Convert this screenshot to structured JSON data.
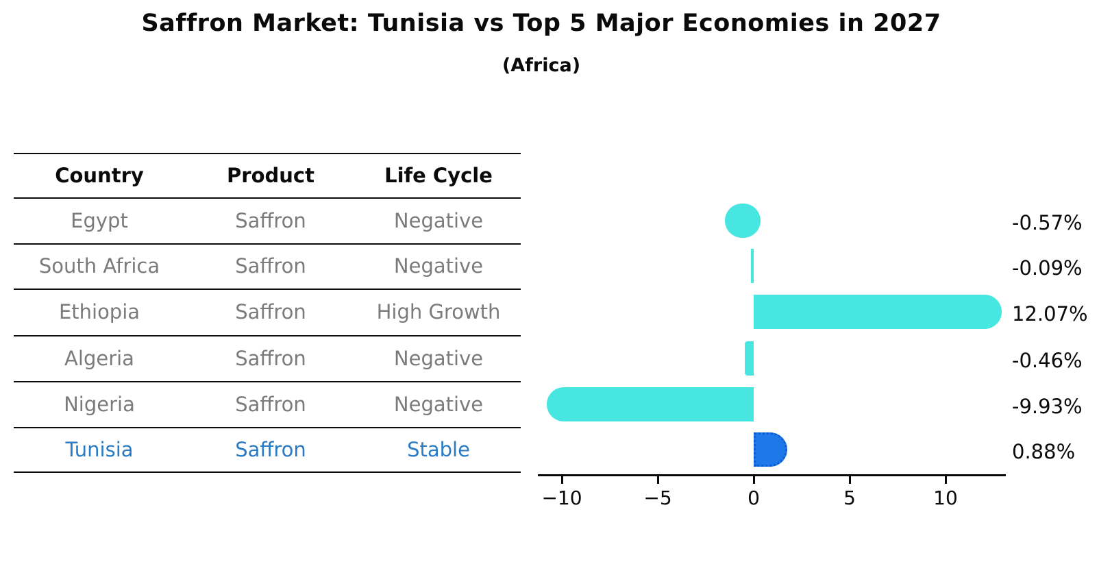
{
  "title": "Saffron Market: Tunisia vs Top 5 Major Economies in 2027",
  "subtitle": "(Africa)",
  "table": {
    "headers": [
      "Country",
      "Product",
      "Life Cycle"
    ],
    "rows": [
      {
        "country": "Egypt",
        "product": "Saffron",
        "life_cycle": "Negative",
        "highlight": false
      },
      {
        "country": "South Africa",
        "product": "Saffron",
        "life_cycle": "Negative",
        "highlight": false
      },
      {
        "country": "Ethiopia",
        "product": "Saffron",
        "life_cycle": "High Growth",
        "highlight": false
      },
      {
        "country": "Algeria",
        "product": "Saffron",
        "life_cycle": "Negative",
        "highlight": false
      },
      {
        "country": "Nigeria",
        "product": "Saffron",
        "life_cycle": "Negative",
        "highlight": false
      },
      {
        "country": "Tunisia",
        "product": "Saffron",
        "life_cycle": "Stable",
        "highlight": true
      }
    ]
  },
  "chart_data": {
    "type": "bar",
    "orientation": "horizontal",
    "categories": [
      "Egypt",
      "South Africa",
      "Ethiopia",
      "Algeria",
      "Nigeria",
      "Tunisia"
    ],
    "values": [
      -0.57,
      -0.09,
      12.07,
      -0.46,
      -9.93,
      0.88
    ],
    "value_labels": [
      "-0.57%",
      "-0.09%",
      "12.07%",
      "-0.46%",
      "-9.93%",
      "0.88%"
    ],
    "bar_styles": [
      "blob",
      "thin",
      "round-cap",
      "square",
      "round-cap",
      "round-cap-dashed"
    ],
    "highlight_index": 5,
    "xlim": [
      -11.5,
      13.2
    ],
    "x_ticks": [
      -10,
      -5,
      0,
      5,
      10
    ],
    "x_tick_labels": [
      "−10",
      "−5",
      "0",
      "5",
      "10"
    ],
    "grid": false,
    "legend": "none",
    "xlabel": "",
    "ylabel": ""
  },
  "colors": {
    "bar_cyan": "#47E6E0",
    "bar_highlight_blue": "#1E78E8",
    "highlight_border_blue": "#0C5BD0",
    "table_text_gray": "#7b7b7b",
    "highlight_text_blue": "#2B7BC4",
    "axis_black": "#0a0a0a"
  }
}
